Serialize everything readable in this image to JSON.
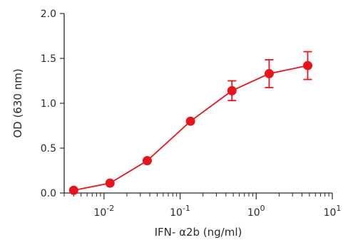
{
  "chart_data": {
    "type": "scatter",
    "xlabel": "IFN- α2b (ng/ml)",
    "ylabel": "OD (630 nm)",
    "xscale": "log",
    "xlim": [
      0.003,
      10
    ],
    "ylim": [
      0.0,
      2.0
    ],
    "yticks": [
      "0.0",
      "0.5",
      "1.0",
      "1.5",
      "2.0"
    ],
    "xticks": [
      {
        "value": 0.01,
        "base": "10",
        "exp": "-2"
      },
      {
        "value": 0.1,
        "base": "10",
        "exp": "-1"
      },
      {
        "value": 1,
        "base": "10",
        "exp": "0"
      },
      {
        "value": 10,
        "base": "10",
        "exp": "1"
      }
    ],
    "series": [
      {
        "color": "#e8141c",
        "points": [
          {
            "x": 0.004,
            "y": 0.03,
            "err": 0
          },
          {
            "x": 0.012,
            "y": 0.11,
            "err": 0
          },
          {
            "x": 0.037,
            "y": 0.36,
            "err": 0
          },
          {
            "x": 0.137,
            "y": 0.8,
            "err": 0
          },
          {
            "x": 0.48,
            "y": 1.14,
            "err": 0.11
          },
          {
            "x": 1.48,
            "y": 1.33,
            "err": 0.155
          },
          {
            "x": 4.75,
            "y": 1.42,
            "err": 0.155
          }
        ]
      }
    ],
    "axis_color": "#2b2b2b",
    "grid": false
  }
}
